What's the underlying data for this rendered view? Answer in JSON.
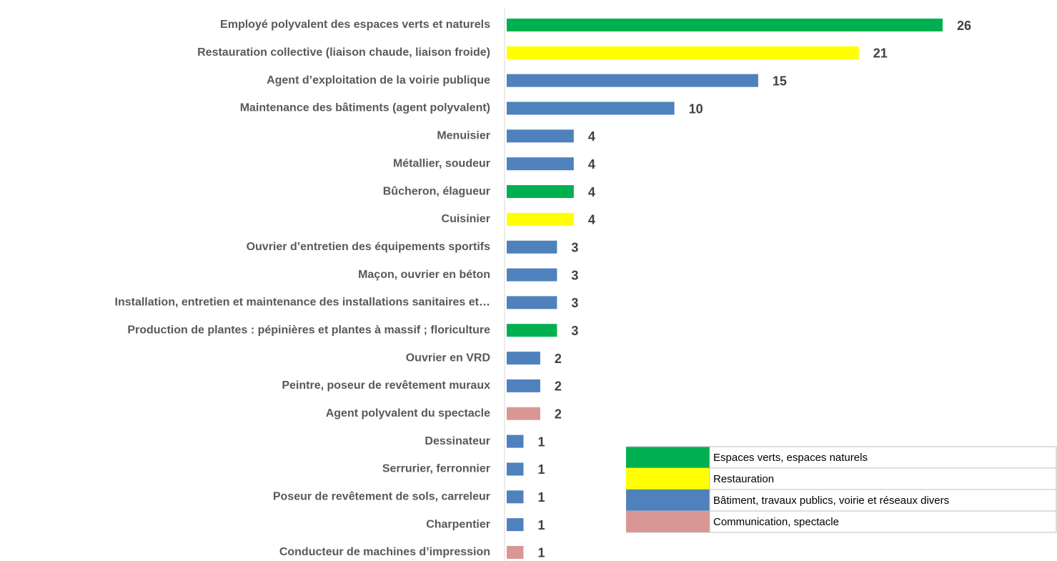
{
  "chart_data": {
    "type": "bar",
    "orientation": "horizontal",
    "categories": [
      "Employé polyvalent des espaces verts et naturels",
      "Restauration collective (liaison chaude, liaison froide)",
      "Agent d’exploitation  de la voirie publique",
      "Maintenance des bâtiments (agent polyvalent)",
      "Menuisier",
      "Métallier, soudeur",
      "Bûcheron, élagueur",
      "Cuisinier",
      "Ouvrier d’entretien des équipements sportifs",
      "Maçon, ouvrier en béton",
      "Installation, entretien et maintenance des installations sanitaires et…",
      "Production de plantes : pépinières et plantes à massif ; floriculture",
      "Ouvrier en VRD",
      "Peintre, poseur de revêtement muraux",
      "Agent polyvalent du spectacle",
      "Dessinateur",
      "Serrurier, ferronnier",
      "Poseur de revêtement de sols, carreleur",
      "Charpentier",
      "Conducteur de machines d’impression"
    ],
    "values": [
      26,
      21,
      15,
      10,
      4,
      4,
      4,
      4,
      3,
      3,
      3,
      3,
      2,
      2,
      2,
      1,
      1,
      1,
      1,
      1
    ],
    "colors": [
      "#00b050",
      "#ffff00",
      "#4f81bd",
      "#4f81bd",
      "#4f81bd",
      "#4f81bd",
      "#00b050",
      "#ffff00",
      "#4f81bd",
      "#4f81bd",
      "#4f81bd",
      "#00b050",
      "#4f81bd",
      "#4f81bd",
      "#d99694",
      "#4f81bd",
      "#4f81bd",
      "#4f81bd",
      "#4f81bd",
      "#d99694"
    ],
    "xlim": [
      0,
      26
    ],
    "legend": [
      {
        "name": "Espaces verts, espaces naturels",
        "color": "#00b050"
      },
      {
        "name": "Restauration",
        "color": "#ffff00"
      },
      {
        "name": "Bâtiment, travaux publics, voirie et réseaux divers",
        "color": "#4f81bd"
      },
      {
        "name": "Communication, spectacle",
        "color": "#d99694"
      }
    ]
  }
}
